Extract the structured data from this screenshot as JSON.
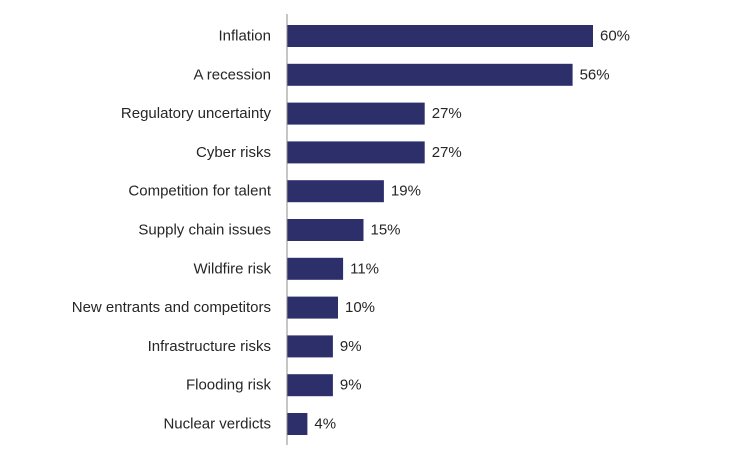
{
  "chart_data": {
    "type": "bar",
    "orientation": "horizontal",
    "categories": [
      "Inflation",
      "A recession",
      "Regulatory uncertainty",
      "Cyber risks",
      "Competition for talent",
      "Supply chain issues",
      "Wildfire risk",
      "New entrants and competitors",
      "Infrastructure risks",
      "Flooding risk",
      "Nuclear verdicts"
    ],
    "values": [
      60,
      56,
      27,
      27,
      19,
      15,
      11,
      10,
      9,
      9,
      4
    ],
    "value_labels": [
      "60%",
      "56%",
      "27%",
      "27%",
      "19%",
      "15%",
      "11%",
      "10%",
      "9%",
      "9%",
      "4%"
    ],
    "title": "",
    "xlabel": "",
    "ylabel": "",
    "xlim": [
      0,
      60
    ],
    "grid": false,
    "legend": "none",
    "bar_color": "#2d2f6b"
  }
}
